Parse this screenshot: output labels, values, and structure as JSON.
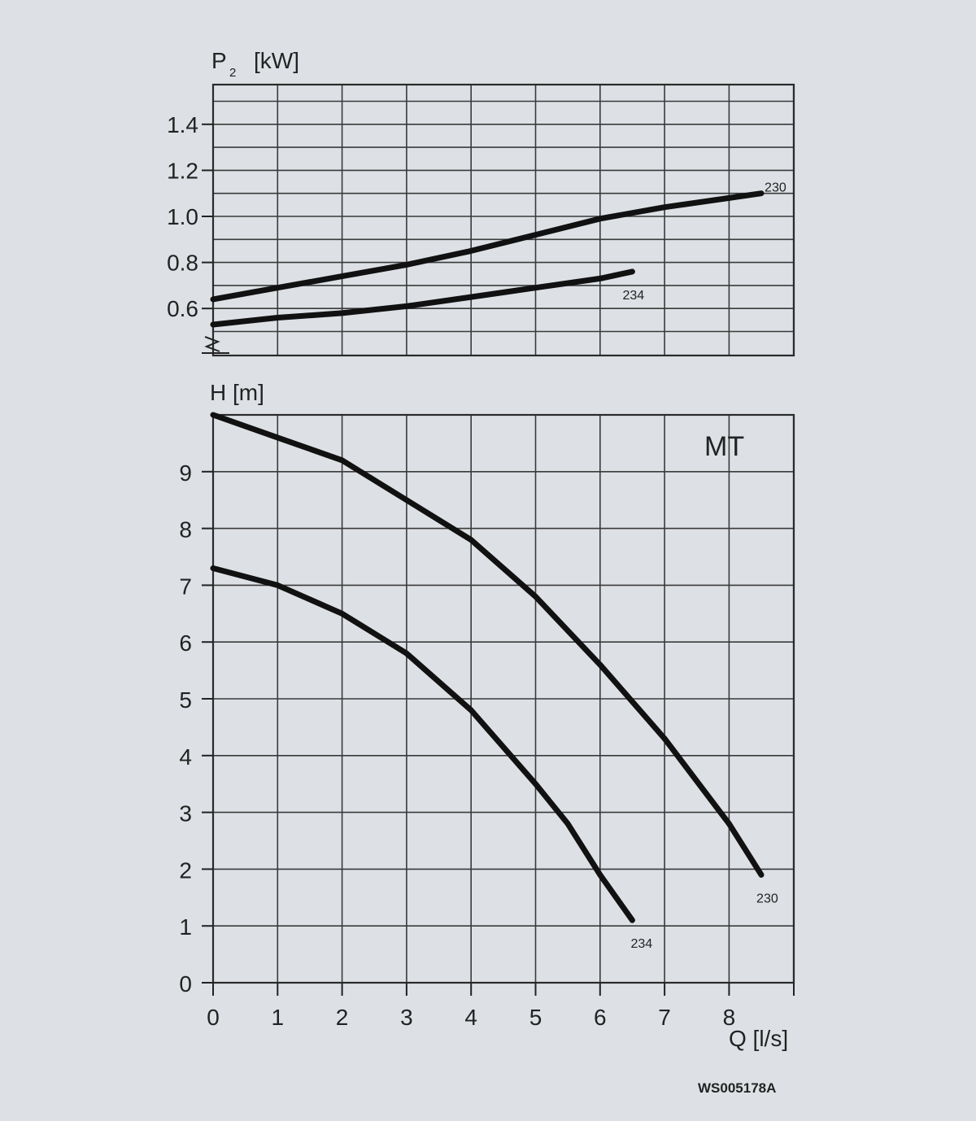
{
  "figure": {
    "model": "MT",
    "reference": "WS005178A"
  },
  "chart_data": [
    {
      "type": "line",
      "title": "",
      "ylabel_main": "P",
      "ylabel_sub": "2",
      "ylabel_unit": "[kW]",
      "xlabel": "",
      "xlim": [
        0,
        9
      ],
      "ylim": [
        0.4,
        1.6
      ],
      "y_ticks": [
        0.6,
        0.8,
        1.0,
        1.2,
        1.4
      ],
      "y_tick_labels": [
        "0.6",
        "0.8",
        "1.0",
        "1.2",
        "1.4"
      ],
      "grid": true,
      "axis_break": true,
      "series": [
        {
          "name": "230",
          "x": [
            0,
            1,
            2,
            3,
            4,
            5,
            6,
            7,
            8,
            8.5
          ],
          "y": [
            0.64,
            0.69,
            0.74,
            0.79,
            0.85,
            0.92,
            0.99,
            1.04,
            1.08,
            1.1
          ]
        },
        {
          "name": "234",
          "x": [
            0,
            1,
            2,
            3,
            4,
            5,
            6,
            6.5
          ],
          "y": [
            0.53,
            0.56,
            0.58,
            0.61,
            0.65,
            0.69,
            0.73,
            0.76
          ]
        }
      ]
    },
    {
      "type": "line",
      "title": "",
      "ylabel": "H [m]",
      "xlabel": "Q [l/s]",
      "xlim": [
        0,
        9
      ],
      "ylim": [
        0,
        10
      ],
      "x_ticks": [
        0,
        1,
        2,
        3,
        4,
        5,
        6,
        7,
        8
      ],
      "x_tick_labels": [
        "0",
        "1",
        "2",
        "3",
        "4",
        "5",
        "6",
        "7",
        "8"
      ],
      "y_ticks": [
        0,
        1,
        2,
        3,
        4,
        5,
        6,
        7,
        8,
        9
      ],
      "y_tick_labels": [
        "0",
        "1",
        "2",
        "3",
        "4",
        "5",
        "6",
        "7",
        "8",
        "9"
      ],
      "grid": true,
      "series": [
        {
          "name": "230",
          "x": [
            0,
            1,
            2,
            3,
            4,
            5,
            6,
            7,
            8,
            8.5
          ],
          "y": [
            10.0,
            9.6,
            9.2,
            8.5,
            7.8,
            6.8,
            5.6,
            4.3,
            2.8,
            1.9
          ]
        },
        {
          "name": "234",
          "x": [
            0,
            1,
            2,
            3,
            4,
            5,
            5.5,
            6,
            6.5
          ],
          "y": [
            7.3,
            7.0,
            6.5,
            5.8,
            4.8,
            3.5,
            2.8,
            1.9,
            1.1
          ]
        }
      ]
    }
  ]
}
